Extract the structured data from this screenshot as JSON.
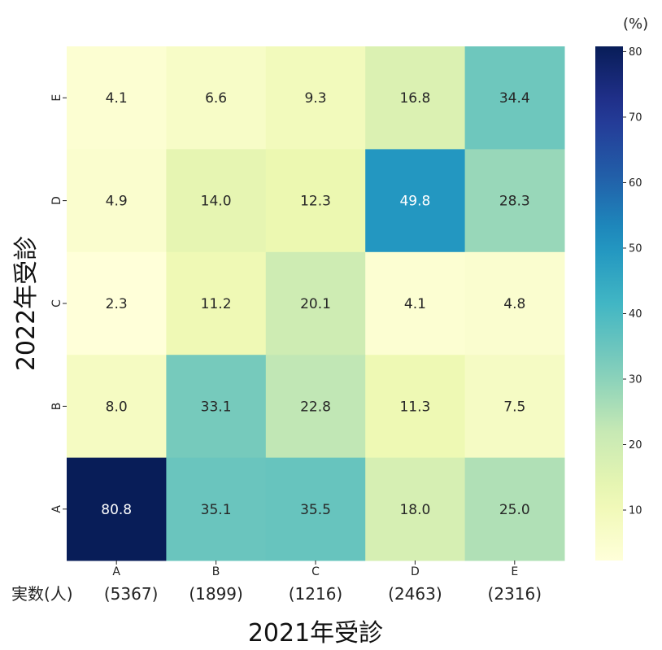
{
  "chart_data": {
    "type": "heatmap",
    "xlabel": "2021年受診",
    "ylabel": "2022年受診",
    "x_categories": [
      "A",
      "B",
      "C",
      "D",
      "E"
    ],
    "y_categories": [
      "E",
      "D",
      "C",
      "B",
      "A"
    ],
    "count_prefix": "実数(人)",
    "counts": [
      "(5367)",
      "(1899)",
      "(1216)",
      "(2463)",
      "(2316)"
    ],
    "values": [
      [
        4.1,
        6.6,
        9.3,
        16.8,
        34.4
      ],
      [
        4.9,
        14.0,
        12.3,
        49.8,
        28.3
      ],
      [
        2.3,
        11.2,
        20.1,
        4.1,
        4.8
      ],
      [
        8.0,
        33.1,
        22.8,
        11.3,
        7.5
      ],
      [
        80.8,
        35.1,
        35.5,
        18.0,
        25.0
      ]
    ],
    "value_labels": [
      [
        "4.1",
        "6.6",
        "9.3",
        "16.8",
        "34.4"
      ],
      [
        "4.9",
        "14.0",
        "12.3",
        "49.8",
        "28.3"
      ],
      [
        "2.3",
        "11.2",
        "20.1",
        "4.1",
        "4.8"
      ],
      [
        "8.0",
        "33.1",
        "22.8",
        "11.3",
        "7.5"
      ],
      [
        "80.8",
        "35.1",
        "35.5",
        "18.0",
        "25.0"
      ]
    ],
    "colorbar": {
      "unit": "(%)",
      "min": 2.3,
      "max": 80.8,
      "ticks": [
        10,
        20,
        30,
        40,
        50,
        60,
        70,
        80
      ],
      "colormap": "YlGnBu"
    }
  }
}
